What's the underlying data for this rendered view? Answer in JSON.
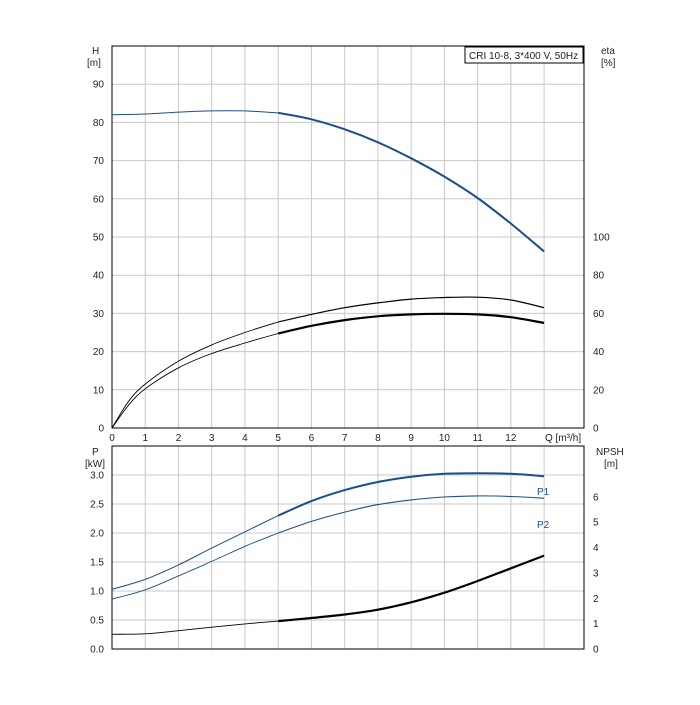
{
  "chart_data": [
    {
      "type": "line",
      "panel": "head-efficiency",
      "title": "CRI 10-8, 3*400 V, 50Hz",
      "xlabel": "Q [m³/h]",
      "x_ticks": [
        "0",
        "1",
        "2",
        "3",
        "4",
        "5",
        "6",
        "7",
        "8",
        "9",
        "10",
        "11",
        "12"
      ],
      "xlim": [
        0,
        14.2
      ],
      "left_axis": {
        "label_line1": "H",
        "label_line2": "[m]",
        "ticks": [
          0,
          10,
          20,
          30,
          40,
          50,
          60,
          70,
          80,
          90
        ],
        "range": [
          0,
          100
        ]
      },
      "right_axis": {
        "label_line1": "eta",
        "label_line2": "[%]",
        "ticks": [
          0,
          20,
          40,
          60,
          80,
          100
        ],
        "range": [
          0,
          200
        ]
      },
      "grid": true,
      "colors": {
        "head": "#1a4f8c",
        "eta": "#000000",
        "grid": "#c8c8c8"
      },
      "series": [
        {
          "axis": "left",
          "style": "head",
          "x": [
            0,
            1,
            2,
            3,
            4,
            5,
            6,
            7,
            8,
            9,
            10,
            11,
            12,
            13
          ],
          "y": [
            82,
            82.2,
            82.7,
            83,
            83,
            82.5,
            80.8,
            78.2,
            74.8,
            70.6,
            65.8,
            60.2,
            53.5,
            46.2
          ]
        },
        {
          "axis": "right",
          "style": "eta-total",
          "x": [
            0,
            0.5,
            1,
            2,
            3,
            4,
            5,
            6,
            7,
            8,
            9,
            10,
            11,
            12,
            13
          ],
          "y": [
            0,
            12,
            20.5,
            31.5,
            39,
            44.5,
            49.5,
            53.5,
            56.5,
            58.5,
            59.5,
            59.8,
            59.5,
            58,
            55
          ]
        },
        {
          "axis": "right",
          "style": "eta-pump",
          "x": [
            0,
            0.5,
            1,
            2,
            3,
            4,
            5,
            6,
            7,
            8,
            9,
            10,
            11,
            12,
            13
          ],
          "y": [
            0,
            14,
            23,
            35,
            43.5,
            50,
            55.5,
            59.5,
            63,
            65.5,
            67.5,
            68.3,
            68.5,
            67,
            63
          ]
        }
      ]
    },
    {
      "type": "line",
      "panel": "power-npsh",
      "xlim": [
        0,
        14.2
      ],
      "left_axis": {
        "label_line1": "P",
        "label_line2": "[kW]",
        "ticks": [
          "0.0",
          "0.5",
          "1.0",
          "1.5",
          "2.0",
          "2.5",
          "3.0"
        ],
        "range": [
          0,
          3.5
        ]
      },
      "right_axis": {
        "label_line1": "NPSH",
        "label_line2": "[m]",
        "ticks": [
          "0",
          "1",
          "2",
          "3",
          "4",
          "5",
          "6"
        ],
        "range": [
          0,
          8
        ]
      },
      "grid": true,
      "colors": {
        "power": "#1a4f8c",
        "npsh": "#000000"
      },
      "series": [
        {
          "name": "P1",
          "axis": "left",
          "style": "power-p1",
          "x": [
            0,
            1,
            2,
            3,
            4,
            5,
            6,
            7,
            8,
            9,
            10,
            11,
            12,
            13
          ],
          "y": [
            1.03,
            1.2,
            1.45,
            1.74,
            2.02,
            2.3,
            2.55,
            2.74,
            2.88,
            2.97,
            3.02,
            3.03,
            3.02,
            2.98
          ]
        },
        {
          "name": "P2",
          "axis": "left",
          "style": "power-p2",
          "x": [
            0,
            1,
            2,
            3,
            4,
            5,
            6,
            7,
            8,
            9,
            10,
            11,
            12,
            13
          ],
          "y": [
            0.86,
            1.02,
            1.26,
            1.51,
            1.77,
            2.0,
            2.2,
            2.36,
            2.49,
            2.57,
            2.62,
            2.64,
            2.63,
            2.6
          ]
        },
        {
          "axis": "right",
          "style": "npsh",
          "x": [
            0,
            1,
            2,
            3,
            4,
            5,
            6,
            7,
            8,
            9,
            10,
            11,
            12,
            13
          ],
          "y": [
            0.58,
            0.6,
            0.72,
            0.86,
            0.99,
            1.1,
            1.22,
            1.36,
            1.55,
            1.84,
            2.22,
            2.68,
            3.18,
            3.68
          ]
        }
      ]
    }
  ]
}
